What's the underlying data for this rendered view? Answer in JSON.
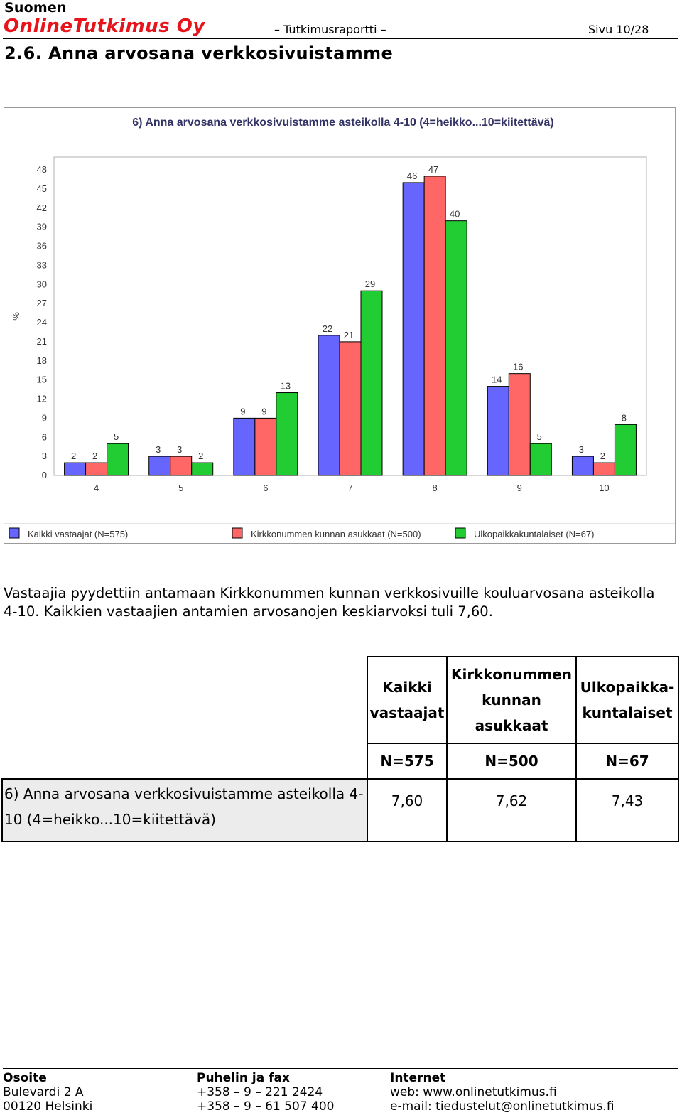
{
  "header": {
    "brand_top": "Suomen",
    "brand_main": "OnlineTutkimus Oy",
    "doc_type": "– Tutkimusraportti –",
    "page": "Sivu 10/28"
  },
  "section_title": "2.6. Anna arvosana verkkosivuistamme",
  "chart_data": {
    "type": "bar",
    "title": "6) Anna arvosana verkkosivuistamme asteikolla 4-10 (4=heikko...10=kiitettävä)",
    "xlabel": "",
    "ylabel": "%",
    "categories": [
      "4",
      "5",
      "6",
      "7",
      "8",
      "9",
      "10"
    ],
    "series": [
      {
        "name": "Kaikki vastaajat (N=575)",
        "color": "#6666ff",
        "values": [
          2,
          3,
          9,
          22,
          46,
          14,
          3
        ]
      },
      {
        "name": "Kirkkonummen kunnan asukkaat (N=500)",
        "color": "#ff6666",
        "values": [
          2,
          3,
          9,
          21,
          47,
          16,
          2
        ]
      },
      {
        "name": "Ulkopaikkakuntalaiset (N=67)",
        "color": "#22cc33",
        "values": [
          5,
          2,
          13,
          29,
          40,
          5,
          8
        ]
      }
    ],
    "yticks": [
      0,
      3,
      6,
      9,
      12,
      15,
      18,
      21,
      24,
      27,
      30,
      33,
      36,
      39,
      42,
      45,
      48
    ],
    "ylim": [
      0,
      48
    ],
    "grid": false,
    "legend_position": "bottom"
  },
  "paragraph": "Vastaajia pyydettiin antamaan Kirkkonummen kunnan verkkosivuille kouluarvosana asteikolla 4-10. Kaikkien vastaajien antamien arvosanojen keskiarvoksi tuli 7,60.",
  "table": {
    "columns": [
      {
        "lines": [
          "Kaikki",
          "vastaajat"
        ],
        "n": "N=575"
      },
      {
        "lines": [
          "Kirkkonummen",
          "kunnan",
          "asukkaat"
        ],
        "n": "N=500"
      },
      {
        "lines": [
          "Ulkopaikka-",
          "kuntalaiset"
        ],
        "n": "N=67"
      }
    ],
    "question": "6) Anna arvosana verkkosivuistamme asteikolla 4-10 (4=heikko...10=kiitettävä)",
    "values": [
      "7,60",
      "7,62",
      "7,43"
    ]
  },
  "footer": {
    "address": {
      "label": "Osoite",
      "line1": "Bulevardi 2 A",
      "line2": "00120 Helsinki"
    },
    "phone": {
      "label": "Puhelin ja fax",
      "line1": "+358 – 9 – 221 2424",
      "line2": "+358 – 9 – 61 507 400"
    },
    "internet": {
      "label": "Internet",
      "line1": "web: www.onlinetutkimus.fi",
      "line2": "e-mail: tiedustelut@onlinetutkimus.fi"
    }
  }
}
